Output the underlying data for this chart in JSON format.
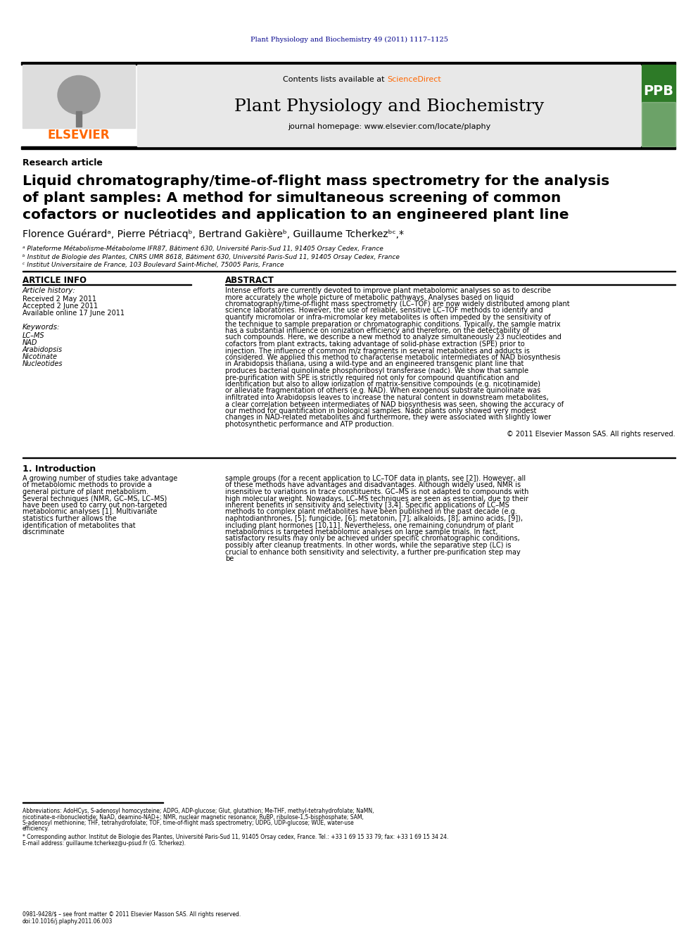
{
  "journal_citation": "Plant Physiology and Biochemistry 49 (2011) 1117–1125",
  "journal_citation_color": "#00008B",
  "contents_text": "Contents lists available at ",
  "sciencedirect_text": "ScienceDirect",
  "sciencedirect_color": "#FF6600",
  "journal_name": "Plant Physiology and Biochemistry",
  "journal_homepage": "journal homepage: www.elsevier.com/locate/plaphy",
  "elsevier_color": "#FF6600",
  "elsevier_text": "ELSEVIER",
  "ppb_color": "#2D7A27",
  "research_article": "Research article",
  "paper_title_line1": "Liquid chromatography/time-of-flight mass spectrometry for the analysis",
  "paper_title_line2": "of plant samples: A method for simultaneous screening of common",
  "paper_title_line3": "cofactors or nucleotides and application to an engineered plant line",
  "authors": "Florence Guérardᵃ, Pierre Pétriacqᵇ, Bertrand Gakièreᵇ, Guillaume Tcherkezᵇᶜ,*",
  "affiliation_a": "ᵃ Plateforme Métabolisme-Métabolome IFR87, Bâtiment 630, Université Paris-Sud 11, 91405 Orsay Cedex, France",
  "affiliation_b": "ᵇ Institut de Biologie des Plantes, CNRS UMR 8618, Bâtiment 630, Université Paris-Sud 11, 91405 Orsay Cedex, France",
  "affiliation_c": "ᶜ Institut Universitaire de France, 103 Boulevard Saint-Michel, 75005 Paris, France",
  "article_info_title": "ARTICLE INFO",
  "article_history_title": "Article history:",
  "received": "Received 2 May 2011",
  "accepted": "Accepted 2 June 2011",
  "available": "Available online 17 June 2011",
  "keywords_title": "Keywords:",
  "keyword1": "LC–MS",
  "keyword2": "NAD",
  "keyword3": "Arabidopsis",
  "keyword4": "Nicotinate",
  "keyword5": "Nucleotides",
  "abstract_title": "ABSTRACT",
  "abstract_text": "Intense efforts are currently devoted to improve plant metabolomic analyses so as to describe more accurately the whole picture of metabolic pathways. Analyses based on liquid chromatography/time-of-flight mass spectrometry (LC–TOF) are now widely distributed among plant science laboratories. However, the use of reliable, sensitive LC–TOF methods to identify and quantify micromolar or infra-micromolar key metabolites is often impeded by the sensitivity of the technique to sample preparation or chromatographic conditions. Typically, the sample matrix has a substantial influence on ionization efficiency and therefore, on the detectability of such compounds. Here, we describe a new method to analyze simultaneously 23 nucleotides and cofactors from plant extracts, taking advantage of solid-phase extraction (SPE) prior to injection. The influence of common m/z fragments in several metabolites and adducts is considered. We applied this method to characterise metabolic intermediates of NAD biosynthesis in Arabidopsis thaliana, using a wild-type and an engineered transgenic plant line that produces bacterial quinolinate phosphoribosyl transferase (nadc). We show that sample pre-purification with SPE is strictly required not only for compound quantification and identification but also to allow ionization of matrix-sensitive compounds (e.g. nicotinamide) or alleviate fragmentation of others (e.g. NAD). When exogenous substrate quinolinate was infiltrated into Arabidopsis leaves to increase the natural content in downstream metabolites, a clear correlation between intermediates of NAD biosynthesis was seen, showing the accuracy of our method for quantification in biological samples. Nadc plants only showed very modest changes in NAD-related metabolites and furthermore, they were associated with slightly lower photosynthetic performance and ATP production.",
  "copyright": "© 2011 Elsevier Masson SAS. All rights reserved.",
  "intro_title": "1. Introduction",
  "intro_text1": "A growing number of studies take advantage of metabolomic methods to provide a general picture of plant metabolism. Several techniques (NMR, GC–MS, LC–MS) have been used to carry out non-targeted metabolomic analyses [1]. Multivariate statistics further allows the identification of metabolites that discriminate",
  "right_col_text1": "sample groups (for a recent application to LC–TOF data in plants, see [2]). However, all of these methods have advantages and disadvantages. Although widely used, NMR is insensitive to variations in trace constituents. GC–MS is not adapted to compounds with high molecular weight. Nowadays, LC–MS techniques are seen as essential, due to their inherent benefits in sensitivity and selectivity [3,4]. Specific applications of LC–MS methods to complex plant metabolites have been published in the past decade (e.g. naphtodianthrones, [5]; fungicide, [6]; metatonin, [7]; alkaloids, [8]; amino acids, [9]), including plant hormones [10,11]. Nevertheless, one remaining conundrum of plant metabolomics is targeted metabolomic analyses on large sample trials. In fact, satisfactory results may only be achieved under specific chromatographic conditions, possibly after cleanup treatments. In other words, while the separative step (LC) is crucial to enhance both sensitivity and selectivity, a further pre-purification step may be",
  "footnote_abbrev": "Abbreviations: AdoHCys, S-adenosyl homocysteine; ADPG, ADP-glucose; Glut, glutathion; Me-THF, methyl-tetrahydrofolate; NaMN, nicotinate-α-ribonucleotide; NaAD, deamino-NAD+; NMR, nuclear magnetic resonance; RuBP, ribulose-1,5-bisphosphate; SAM, S-adenosyl methionine; THF, tetrahydrofolate; TOF, time-of-flight mass spectrometry; UDPG, UDP-glucose; WUE, water-use efficiency.",
  "footnote_corresponding": "* Corresponding author. Institut de Biologie des Plantes, Université Paris-Sud 11, 91405 Orsay cedex, France. Tel.: +33 1 69 15 33 79; fax: +33 1 69 15 34 24.",
  "footnote_email": "E-mail address: guillaume.tcherkez@u-psud.fr (G. Tcherkez).",
  "issn": "0981-9428/$ – see front matter © 2011 Elsevier Masson SAS. All rights reserved.",
  "doi": "doi:10.1016/j.plaphy.2011.06.003"
}
